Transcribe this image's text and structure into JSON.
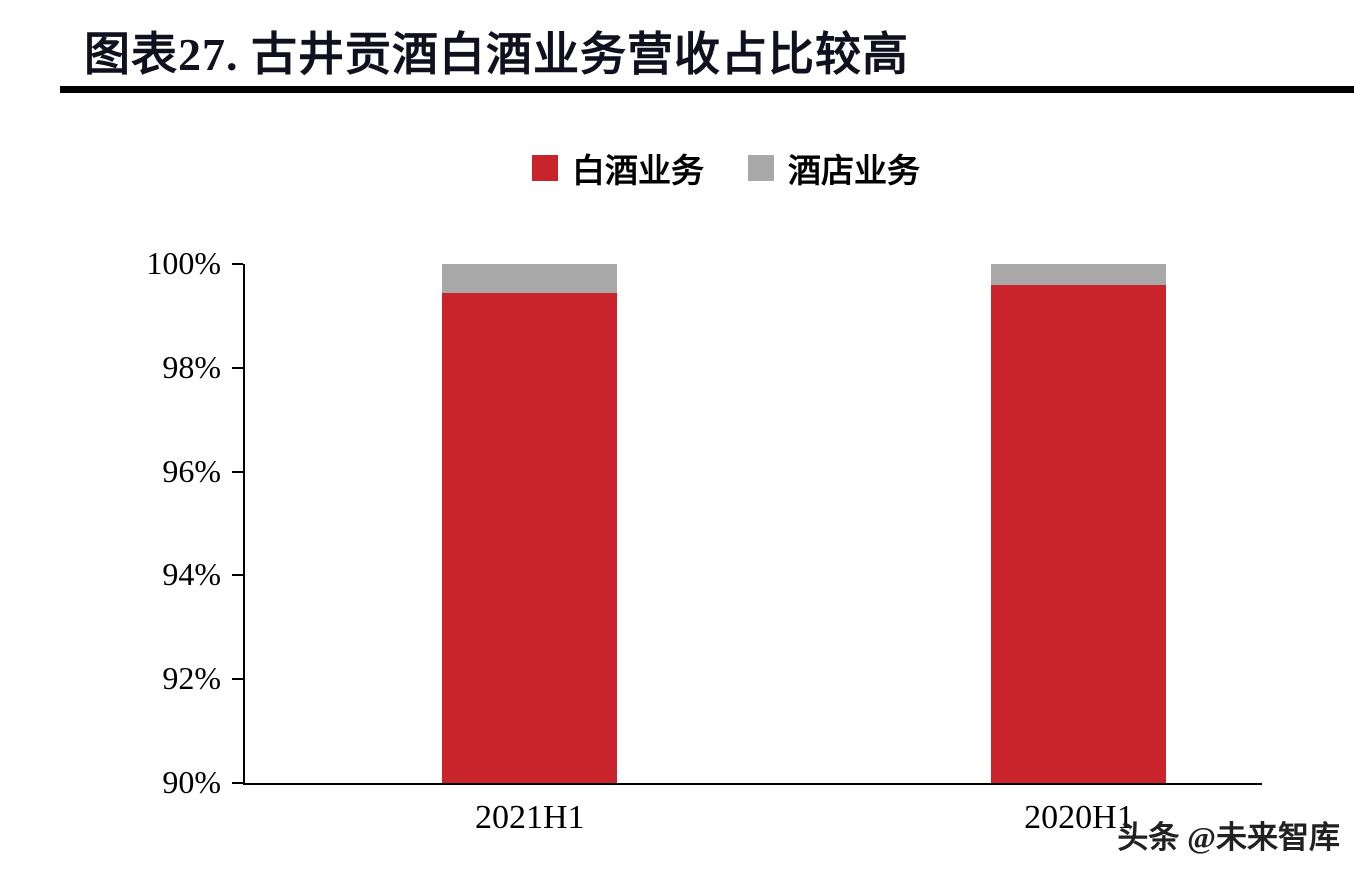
{
  "header": {
    "title": "图表27. 古井贡酒白酒业务营收占比较高"
  },
  "legend": {
    "items": [
      {
        "label": "白酒业务",
        "color": "#C9242B"
      },
      {
        "label": "酒店业务",
        "color": "#A8A8A8"
      }
    ]
  },
  "chart_data": {
    "type": "bar",
    "stacked": true,
    "title": "图表27. 古井贡酒白酒业务营收占比较高",
    "categories": [
      "2021H1",
      "2020H1"
    ],
    "series": [
      {
        "name": "白酒业务",
        "color": "#C9242B",
        "values": [
          99.45,
          99.6
        ]
      },
      {
        "name": "酒店业务",
        "color": "#A8A8A8",
        "values": [
          0.55,
          0.4
        ]
      }
    ],
    "ylim": [
      90,
      100
    ],
    "yticks": [
      90,
      92,
      94,
      96,
      98,
      100
    ],
    "ytick_format": "percent",
    "grid": false,
    "legend_position": "top"
  },
  "watermark": {
    "text": "头条 @未来智库"
  }
}
